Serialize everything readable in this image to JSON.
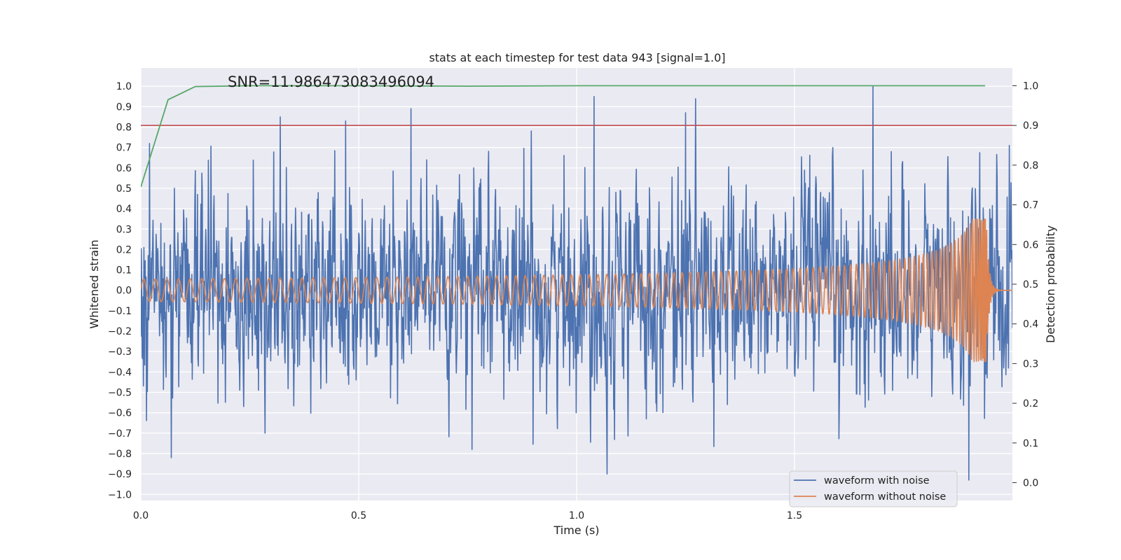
{
  "chart_data": {
    "type": "line",
    "title": "stats at each timestep for test data 943 [signal=1.0]",
    "xlabel": "Time (s)",
    "ylabel": "Whitened strain",
    "y2label": "Detection probability",
    "xlim": [
      0.0,
      2.0
    ],
    "ylim": [
      -1.03,
      1.09
    ],
    "y2lim": [
      -0.045,
      1.045
    ],
    "xticks": [
      "0.0",
      "0.5",
      "1.0",
      "1.5"
    ],
    "yticks": [
      "1.0",
      "0.9",
      "0.8",
      "0.7",
      "0.6",
      "0.5",
      "0.4",
      "0.3",
      "0.2",
      "0.1",
      "0.0",
      "−0.1",
      "−0.2",
      "−0.3",
      "−0.4",
      "−0.5",
      "−0.6",
      "−0.7",
      "−0.8",
      "−0.9",
      "−1.0"
    ],
    "y2ticks": [
      "1.0",
      "0.9",
      "0.8",
      "0.7",
      "0.6",
      "0.5",
      "0.4",
      "0.3",
      "0.2",
      "0.1",
      "0.0"
    ],
    "grid": true,
    "legend_position": "bottom-right",
    "annotation": "SNR=11.986473083496094",
    "colors": {
      "background": "#eaeaf2",
      "grid": "#ffffff",
      "noise": "#4c72b0",
      "clean": "#dd8452",
      "probability": "#55a868",
      "threshold": "#c44e52"
    },
    "threshold": 0.9,
    "series": [
      {
        "name": "waveform with noise",
        "axis": "left",
        "style": "noisy",
        "x_range": [
          0.0,
          2.0
        ],
        "sigma": 0.25,
        "notable_points": [
          [
            0.02,
            0.72
          ],
          [
            0.07,
            -0.82
          ],
          [
            0.32,
            0.85
          ],
          [
            0.47,
            0.83
          ],
          [
            0.62,
            0.89
          ],
          [
            0.76,
            -0.78
          ],
          [
            1.04,
            0.95
          ],
          [
            1.07,
            -0.9
          ],
          [
            1.25,
            0.87
          ],
          [
            1.68,
            1.0
          ],
          [
            1.9,
            -0.93
          ]
        ]
      },
      {
        "name": "waveform without noise",
        "axis": "left",
        "style": "chirp",
        "x_range": [
          0.0,
          2.0
        ],
        "merger_time": 1.94,
        "cycles_per_second_start": 37,
        "amplitude_start": 0.055,
        "amplitude_peak": 0.35
      },
      {
        "name": "",
        "axis": "right",
        "style": "line",
        "x": [
          0.0,
          0.0625,
          0.125,
          0.25,
          0.5,
          0.75,
          1.0,
          1.25,
          1.5,
          1.75,
          1.9375
        ],
        "y": [
          0.745,
          0.965,
          0.998,
          1.0,
          1.0,
          0.999,
          1.0,
          1.0,
          1.0,
          1.0,
          1.0
        ]
      }
    ]
  }
}
